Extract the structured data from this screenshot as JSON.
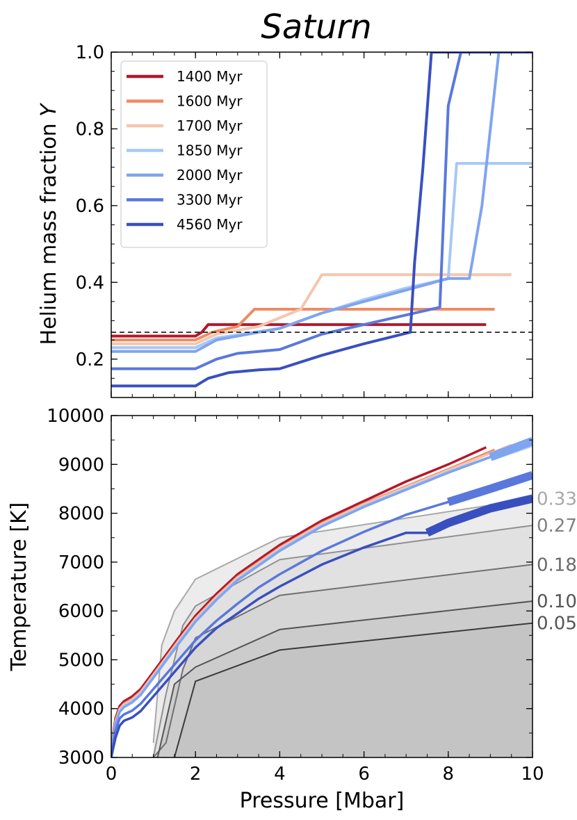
{
  "title": "Saturn",
  "chart_data": [
    {
      "type": "line",
      "panel": "top",
      "xlabel": "",
      "ylabel": "Helium mass fraction",
      "ylabel_symbol": "Y",
      "xlim": [
        0,
        10
      ],
      "ylim": [
        0.1,
        1.0
      ],
      "yticks": [
        {
          "value": 0.2,
          "label": "0.2"
        },
        {
          "value": 0.4,
          "label": "0.4"
        },
        {
          "value": 0.6,
          "label": "0.6"
        },
        {
          "value": 0.8,
          "label": "0.8"
        },
        {
          "value": 1.0,
          "label": "1.0"
        }
      ],
      "legend_position": "top-left",
      "reference_line": {
        "y": 0.27,
        "style": "dashed"
      },
      "series": [
        {
          "name": "1400 Myr",
          "color": "#b2182b",
          "x": [
            0,
            2.0,
            2.15,
            2.3,
            8.9
          ],
          "y": [
            0.26,
            0.26,
            0.27,
            0.29,
            0.29
          ]
        },
        {
          "name": "1600 Myr",
          "color": "#ef8a62",
          "x": [
            0,
            2.0,
            2.4,
            3.0,
            3.4,
            9.1
          ],
          "y": [
            0.25,
            0.25,
            0.27,
            0.285,
            0.33,
            0.33
          ]
        },
        {
          "name": "1700 Myr",
          "color": "#f4c6ae",
          "x": [
            0,
            2.0,
            2.5,
            3.5,
            4.5,
            5.0,
            9.5
          ],
          "y": [
            0.24,
            0.24,
            0.265,
            0.285,
            0.33,
            0.42,
            0.42
          ]
        },
        {
          "name": "1850 Myr",
          "color": "#a6c8f7",
          "x": [
            0,
            2.0,
            2.5,
            4.0,
            5.0,
            6.0,
            7.0,
            8.0,
            8.2,
            10
          ],
          "y": [
            0.23,
            0.23,
            0.255,
            0.28,
            0.32,
            0.355,
            0.385,
            0.41,
            0.71,
            0.71
          ]
        },
        {
          "name": "2000 Myr",
          "color": "#7fa4f0",
          "x": [
            0,
            2.0,
            2.5,
            4.0,
            5.0,
            6.0,
            7.0,
            8.0,
            8.5,
            8.8,
            9.2,
            10
          ],
          "y": [
            0.22,
            0.22,
            0.25,
            0.28,
            0.32,
            0.35,
            0.38,
            0.41,
            0.41,
            0.6,
            1.0,
            1.0
          ]
        },
        {
          "name": "3300 Myr",
          "color": "#5a78dc",
          "x": [
            0,
            2.0,
            2.5,
            3.0,
            4.0,
            5.0,
            6.0,
            7.0,
            7.8,
            8.0,
            8.3,
            10
          ],
          "y": [
            0.175,
            0.175,
            0.2,
            0.215,
            0.225,
            0.265,
            0.29,
            0.315,
            0.335,
            0.86,
            1.0,
            1.0
          ]
        },
        {
          "name": "4560 Myr",
          "color": "#3a4fbf",
          "x": [
            0,
            2.0,
            2.3,
            2.8,
            3.5,
            4.0,
            5.0,
            6.0,
            7.1,
            7.2,
            7.4,
            7.6,
            10
          ],
          "y": [
            0.13,
            0.13,
            0.15,
            0.165,
            0.172,
            0.175,
            0.21,
            0.24,
            0.27,
            0.45,
            0.7,
            1.0,
            1.0
          ]
        }
      ]
    },
    {
      "type": "line",
      "panel": "bottom",
      "xlabel": "Pressure [Mbar]",
      "ylabel": "Temperature [K]",
      "xlim": [
        0,
        10
      ],
      "ylim": [
        3000,
        10000
      ],
      "xticks": [
        {
          "value": 0,
          "label": "0"
        },
        {
          "value": 2,
          "label": "2"
        },
        {
          "value": 4,
          "label": "4"
        },
        {
          "value": 6,
          "label": "6"
        },
        {
          "value": 8,
          "label": "8"
        },
        {
          "value": 10,
          "label": "10"
        }
      ],
      "yticks": [
        {
          "value": 3000,
          "label": "3000"
        },
        {
          "value": 4000,
          "label": "4000"
        },
        {
          "value": 5000,
          "label": "5000"
        },
        {
          "value": 6000,
          "label": "6000"
        },
        {
          "value": 7000,
          "label": "7000"
        },
        {
          "value": 8000,
          "label": "8000"
        },
        {
          "value": 9000,
          "label": "9000"
        },
        {
          "value": 10000,
          "label": "10000"
        }
      ],
      "profiles": [
        {
          "color": "#b2182b",
          "x": [
            0,
            0.05,
            0.1,
            0.2,
            0.3,
            0.5,
            0.7,
            1.0,
            1.3,
            1.6,
            2.0,
            2.5,
            3.0,
            3.5,
            4.0,
            5.0,
            6.0,
            7.0,
            8.0,
            8.9
          ],
          "y": [
            3000,
            3500,
            3800,
            4050,
            4150,
            4250,
            4400,
            4750,
            5100,
            5450,
            5900,
            6350,
            6750,
            7050,
            7350,
            7850,
            8250,
            8650,
            9000,
            9350
          ],
          "thick_from": null
        },
        {
          "color": "#ef8a62",
          "x": [
            0,
            0.05,
            0.1,
            0.2,
            0.3,
            0.5,
            0.7,
            1.0,
            1.3,
            1.6,
            2.0,
            2.5,
            3.0,
            3.5,
            4.0,
            5.0,
            6.0,
            7.0,
            8.0,
            9.1
          ],
          "y": [
            3000,
            3450,
            3750,
            4000,
            4100,
            4200,
            4350,
            4700,
            5050,
            5400,
            5850,
            6300,
            6700,
            7000,
            7300,
            7800,
            8200,
            8550,
            8900,
            9300
          ],
          "thick_from": null
        },
        {
          "color": "#f4c6ae",
          "x": [
            0,
            0.05,
            0.1,
            0.2,
            0.3,
            0.5,
            0.7,
            1.0,
            1.3,
            1.6,
            2.0,
            2.5,
            3.0,
            3.5,
            4.0,
            5.0,
            6.0,
            7.0,
            8.0,
            9.5
          ],
          "y": [
            3000,
            3430,
            3720,
            3980,
            4080,
            4180,
            4330,
            4680,
            5030,
            5380,
            5830,
            6280,
            6680,
            6980,
            7280,
            7780,
            8180,
            8530,
            8880,
            9400
          ],
          "thick_from": null
        },
        {
          "color": "#a6c8f7",
          "x": [
            0,
            0.05,
            0.1,
            0.2,
            0.3,
            0.5,
            0.7,
            1.0,
            1.3,
            1.6,
            2.0,
            2.5,
            3.0,
            3.5,
            4.0,
            5.0,
            6.0,
            7.0,
            8.0,
            9.0,
            10
          ],
          "y": [
            3000,
            3400,
            3700,
            3950,
            4050,
            4150,
            4300,
            4650,
            5000,
            5350,
            5800,
            6250,
            6650,
            6950,
            7250,
            7750,
            8150,
            8500,
            8850,
            9150,
            9450
          ],
          "thick_from": 9.0
        },
        {
          "color": "#7fa4f0",
          "x": [
            0,
            0.05,
            0.1,
            0.2,
            0.3,
            0.5,
            0.7,
            1.0,
            1.3,
            1.6,
            2.0,
            2.5,
            3.0,
            3.5,
            4.0,
            5.0,
            6.0,
            7.0,
            8.0,
            9.0,
            10
          ],
          "y": [
            3000,
            3380,
            3680,
            3930,
            4030,
            4130,
            4280,
            4630,
            4980,
            5330,
            5780,
            6230,
            6630,
            6930,
            7230,
            7730,
            8130,
            8480,
            8830,
            9150,
            9480
          ],
          "thick_from": 9.0
        },
        {
          "color": "#5a78dc",
          "x": [
            0,
            0.05,
            0.1,
            0.2,
            0.3,
            0.5,
            0.7,
            1.0,
            1.3,
            1.6,
            2.0,
            2.5,
            3.0,
            3.5,
            4.0,
            5.0,
            6.0,
            7.0,
            8.0,
            9.0,
            10
          ],
          "y": [
            3000,
            3300,
            3550,
            3800,
            3880,
            3960,
            4100,
            4400,
            4700,
            5000,
            5400,
            5800,
            6150,
            6480,
            6750,
            7230,
            7620,
            7970,
            8230,
            8500,
            8780
          ],
          "thick_from": 8.0
        },
        {
          "color": "#3a4fbf",
          "x": [
            0,
            0.05,
            0.1,
            0.2,
            0.3,
            0.5,
            0.7,
            1.0,
            1.3,
            1.6,
            2.0,
            2.5,
            3.0,
            3.5,
            4.0,
            5.0,
            6.0,
            7.0,
            7.5,
            8.0,
            9.0,
            10
          ],
          "y": [
            3000,
            3200,
            3400,
            3650,
            3750,
            3820,
            3950,
            4250,
            4550,
            4850,
            5250,
            5650,
            5950,
            6250,
            6500,
            6950,
            7300,
            7600,
            7600,
            7800,
            8100,
            8300
          ],
          "thick_from": 7.5
        }
      ],
      "demix_curves": [
        {
          "label": "0.33",
          "label_color": "#a8a8a8",
          "line_color": "#a8a8a8",
          "fill": "#ececec",
          "x": [
            1.0,
            1.2,
            1.5,
            2.0,
            4.0,
            10
          ],
          "y": [
            3300,
            5300,
            6000,
            6650,
            7500,
            8300
          ]
        },
        {
          "label": "0.27",
          "label_color": "#808080",
          "line_color": "#909090",
          "fill": "#e1e1e1",
          "x": [
            1.0,
            1.3,
            1.7,
            2.0,
            4.0,
            10
          ],
          "y": [
            3000,
            4300,
            5700,
            6100,
            7050,
            7750
          ]
        },
        {
          "label": "0.18",
          "label_color": "#6a6a6a",
          "line_color": "#707070",
          "fill": "#d6d6d6",
          "x": [
            1.0,
            1.3,
            1.7,
            2.0,
            4.0,
            10
          ],
          "y": [
            3000,
            3300,
            4800,
            5450,
            6320,
            6950
          ]
        },
        {
          "label": "0.10",
          "label_color": "#555555",
          "line_color": "#555555",
          "fill": "#cccccc",
          "x": [
            1.1,
            1.5,
            2.0,
            4.0,
            10
          ],
          "y": [
            3000,
            4500,
            4850,
            5620,
            6200
          ]
        },
        {
          "label": "0.05",
          "label_color": "#555555",
          "line_color": "#3a3a3a",
          "fill": "#c4c4c4",
          "x": [
            1.5,
            2.0,
            4.0,
            10
          ],
          "y": [
            3000,
            4560,
            5200,
            5750
          ]
        }
      ]
    }
  ]
}
